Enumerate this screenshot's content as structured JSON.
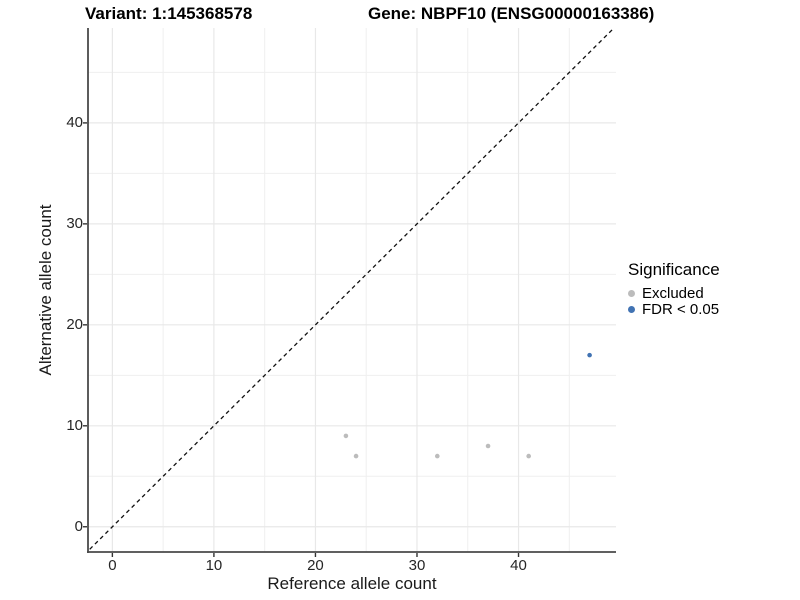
{
  "title_left": "Variant: 1:145368578",
  "title_right": "Gene: NBPF10 (ENSG00000163386)",
  "legend": {
    "title": "Significance",
    "items": [
      {
        "label": "Excluded",
        "color": "#bcbcbc"
      },
      {
        "label": "FDR < 0.05",
        "color": "#4173b3"
      }
    ]
  },
  "colors": {
    "grid_major": "#e8e8e8",
    "grid_minor": "#efefef",
    "axis_line": "#4a4a4a",
    "tick_mark": "#333333",
    "reference_line": "#111111"
  },
  "chart_data": {
    "type": "scatter",
    "title": "Variant: 1:145368578   Gene: NBPF10 (ENSG00000163386)",
    "xlabel": "Reference allele count",
    "ylabel": "Alternative allele count",
    "xlim": [
      -2.4,
      49.6
    ],
    "ylim": [
      -2.5,
      49.4
    ],
    "x_major_ticks": [
      0,
      10,
      20,
      30,
      40
    ],
    "y_major_ticks": [
      0,
      10,
      20,
      30,
      40
    ],
    "x_minor_ticks": [
      5,
      15,
      25,
      35,
      45
    ],
    "y_minor_ticks": [
      5,
      15,
      25,
      35,
      45
    ],
    "grid": true,
    "legend_position": "right",
    "reference_line": {
      "kind": "identity",
      "slope": 1,
      "intercept": 0,
      "style": "dashed"
    },
    "series": [
      {
        "name": "Excluded",
        "color": "#bcbcbc",
        "points": [
          [
            23,
            9
          ],
          [
            24,
            7
          ],
          [
            32,
            7
          ],
          [
            37,
            8
          ],
          [
            41,
            7
          ]
        ]
      },
      {
        "name": "FDR < 0.05",
        "color": "#4173b3",
        "points": [
          [
            47,
            17
          ]
        ]
      }
    ]
  }
}
